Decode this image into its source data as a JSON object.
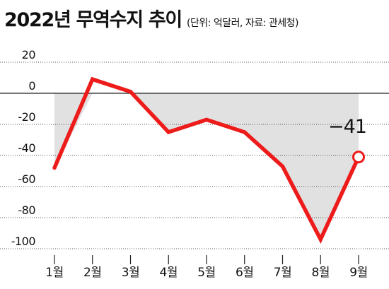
{
  "header": {
    "title": "2022년 무역수지 추이",
    "subtitle": "(단위: 억달러, 자료: 관세청)"
  },
  "colors": {
    "line": "#ee1b1b",
    "fill": "#e1e1e1",
    "grid": "#222222",
    "text": "#111111"
  },
  "chart_data": {
    "type": "line",
    "title": "2022년 무역수지 추이",
    "subtitle": "(단위: 억달러, 자료: 관세청)",
    "xlabel": "",
    "ylabel": "",
    "categories": [
      "1월",
      "2월",
      "3월",
      "4월",
      "5월",
      "6월",
      "7월",
      "8월",
      "9월"
    ],
    "series": [
      {
        "values": [
          -48,
          9,
          1,
          -25,
          -17,
          -25,
          -47,
          -94,
          -41
        ]
      }
    ],
    "ylim": [
      -100,
      20
    ],
    "yticks": [
      20,
      0,
      -20,
      -40,
      -60,
      -80,
      -100
    ],
    "ytick_labels": [
      "20",
      "0",
      "-20",
      "-40",
      "-60",
      "-80",
      "-100"
    ],
    "grid": true,
    "area_fill_below_zero": true,
    "annotations": [
      {
        "category": "9월",
        "text": "−41"
      }
    ],
    "last_point_marker": "hollow-circle"
  }
}
